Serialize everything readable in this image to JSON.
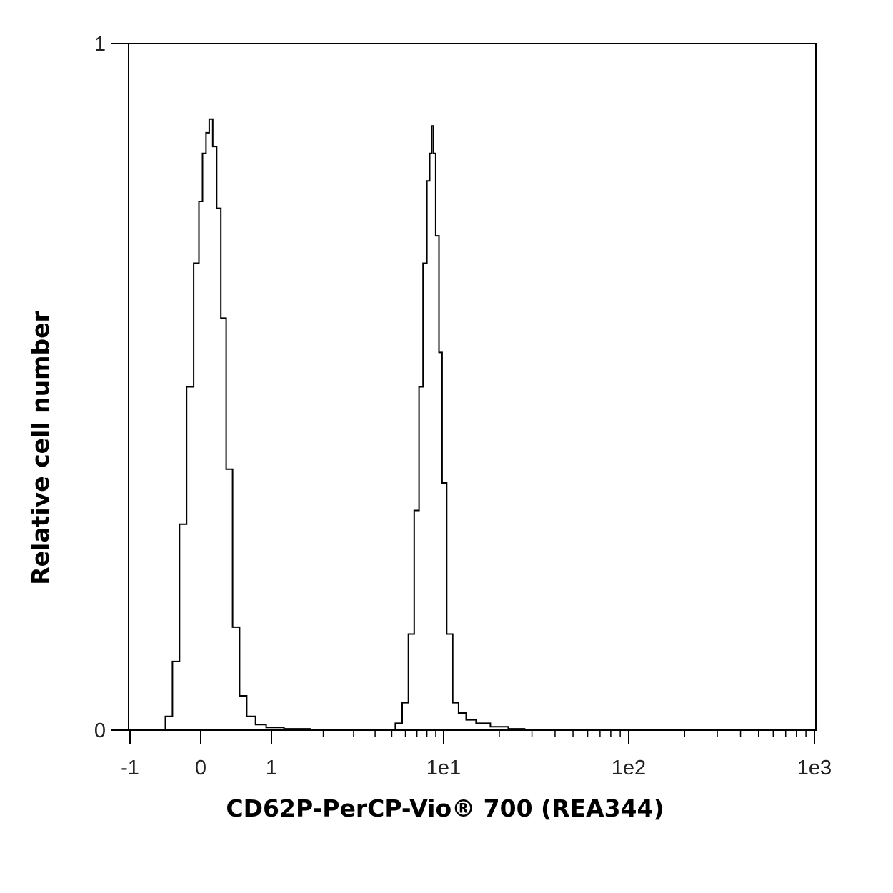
{
  "chart_data": {
    "type": "line",
    "title": "",
    "xlabel": "CD62P-PerCP-Vio® 700 (REA344)",
    "ylabel": "Relative cell number",
    "x_scale": "biexponential",
    "x_ticks": [
      "-1",
      "0",
      "1",
      "1e1",
      "1e2",
      "1e3"
    ],
    "y_ticks": [
      "0",
      "1"
    ],
    "xlim": [
      -1,
      1000
    ],
    "ylim": [
      0,
      1
    ],
    "grid": false,
    "legend": "none",
    "line_color": "#000000",
    "series": [
      {
        "x": [
          -0.55,
          -0.45,
          -0.35,
          -0.25,
          -0.15,
          -0.05,
          0.0,
          0.05,
          0.1,
          0.14,
          0.2,
          0.25,
          0.32,
          0.4,
          0.5,
          0.6,
          0.7,
          0.85,
          1.0,
          1.4,
          2.0
        ],
        "y": [
          0.0,
          0.02,
          0.1,
          0.3,
          0.5,
          0.68,
          0.77,
          0.84,
          0.87,
          0.89,
          0.85,
          0.76,
          0.6,
          0.38,
          0.15,
          0.05,
          0.02,
          0.008,
          0.004,
          0.002,
          0.0
        ]
      },
      {
        "x": [
          5.0,
          5.5,
          6.0,
          6.5,
          7.0,
          7.4,
          7.8,
          8.2,
          8.4,
          8.6,
          8.8,
          9.2,
          9.6,
          10.0,
          10.8,
          11.6,
          12.5,
          14.0,
          16.0,
          20.0,
          25.0,
          30.0
        ],
        "y": [
          0.0,
          0.01,
          0.04,
          0.14,
          0.32,
          0.5,
          0.68,
          0.8,
          0.84,
          0.88,
          0.84,
          0.72,
          0.55,
          0.36,
          0.14,
          0.04,
          0.025,
          0.015,
          0.01,
          0.005,
          0.002,
          0.0
        ]
      }
    ]
  }
}
